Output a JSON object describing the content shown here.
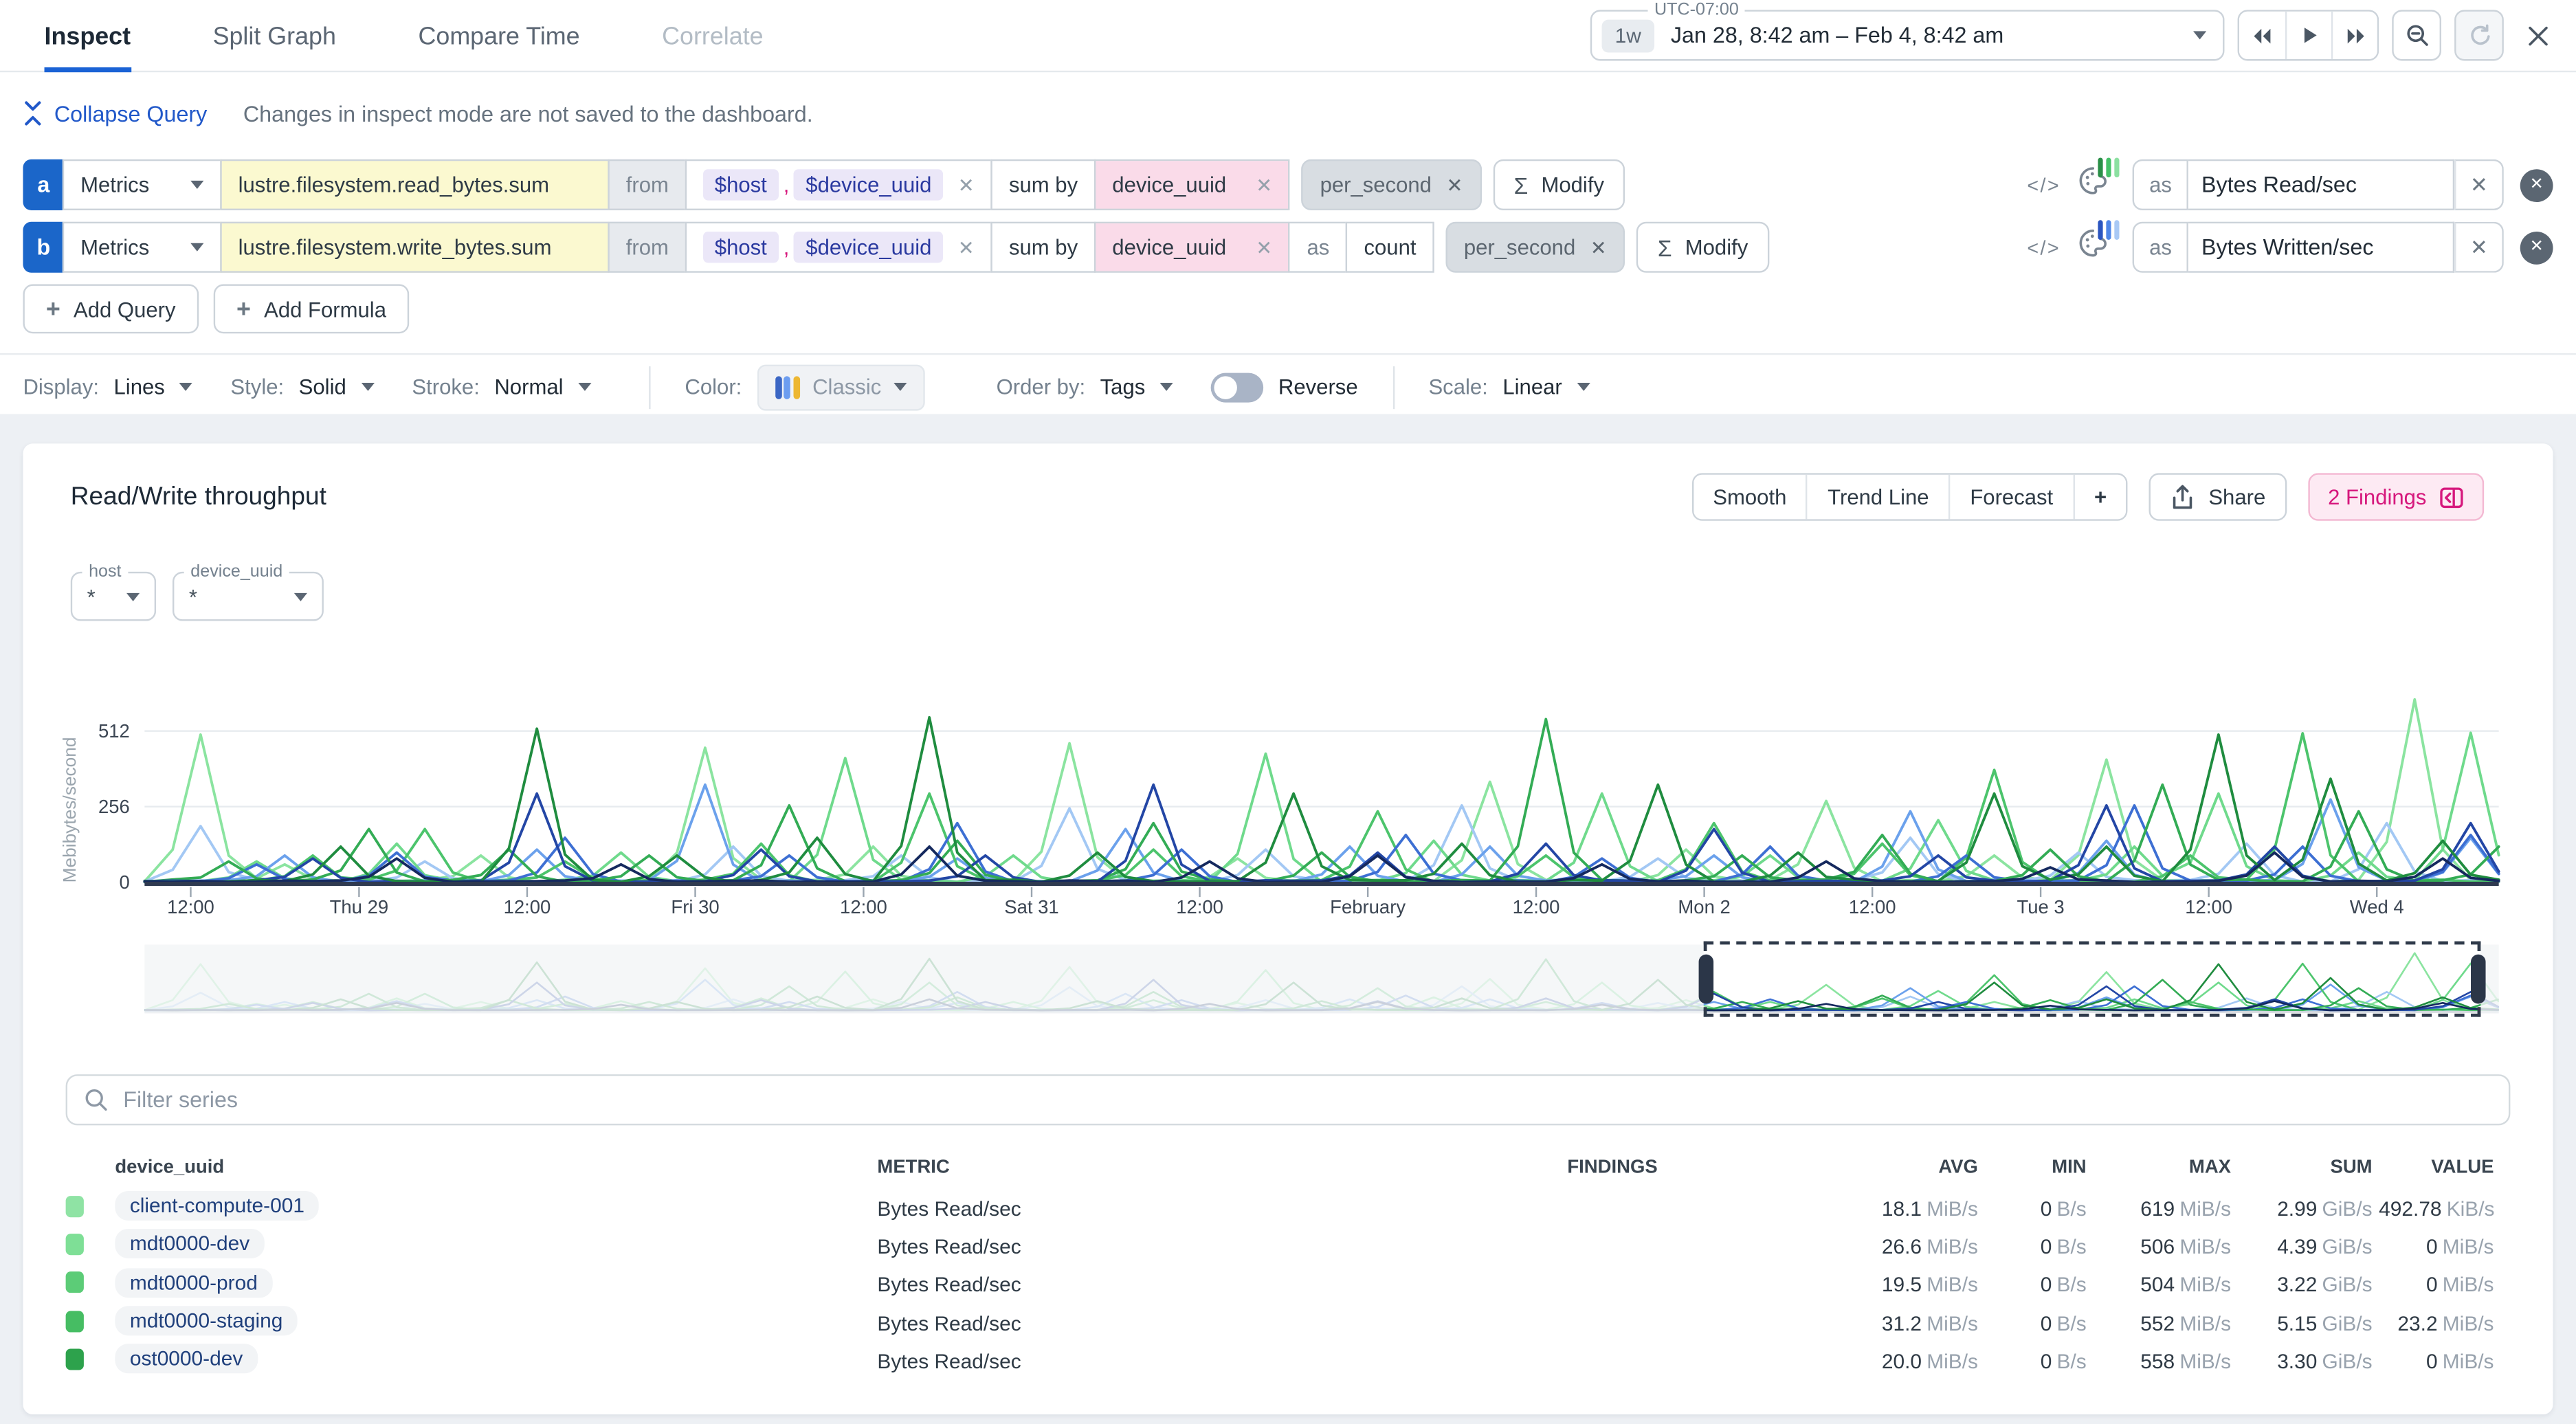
{
  "tabs": [
    {
      "label": "Inspect",
      "active": true
    },
    {
      "label": "Split Graph",
      "active": false
    },
    {
      "label": "Compare Time",
      "active": false
    },
    {
      "label": "Correlate",
      "active": false,
      "disabled": true
    }
  ],
  "time": {
    "timezone": "UTC-07:00",
    "preset": "1w",
    "range": "Jan 28, 8:42 am – Feb 4, 8:42 am"
  },
  "collapse_label": "Collapse Query",
  "notice": "Changes in inspect mode are not saved to the dashboard.",
  "icons": {
    "sigma": "Σ",
    "code": "</>",
    "plus": "+",
    "x": "✕",
    "star": "*",
    "search": "🔍"
  },
  "queries": [
    {
      "id": "a",
      "source": "Metrics",
      "metric": "lustre.filesystem.read_bytes.sum",
      "from_label": "from",
      "filter1": "$host",
      "comma": ",",
      "filter2": "$device_uuid",
      "sum_by_label": "sum by",
      "group_by": "device_uuid",
      "rollup": "per_second",
      "modify_label": "Modify",
      "as_label": "as",
      "alias": "Bytes Read/sec",
      "palette_colors": [
        "#2a8f47",
        "#45c168",
        "#8ce0a1"
      ]
    },
    {
      "id": "b",
      "source": "Metrics",
      "metric": "lustre.filesystem.write_bytes.sum",
      "from_label": "from",
      "filter1": "$host",
      "comma": ",",
      "filter2": "$device_uuid",
      "sum_by_label": "sum by",
      "group_by": "device_uuid",
      "as2_label": "as",
      "count_label": "count",
      "rollup": "per_second",
      "modify_label": "Modify",
      "as_label": "as",
      "alias": "Bytes Written/sec",
      "palette_colors": [
        "#2b55c0",
        "#4f86e8",
        "#a9c9f5"
      ]
    }
  ],
  "add_query_label": "Add Query",
  "add_formula_label": "Add Formula",
  "display": {
    "display_label": "Display:",
    "display_value": "Lines",
    "style_label": "Style:",
    "style_value": "Solid",
    "stroke_label": "Stroke:",
    "stroke_value": "Normal",
    "color_label": "Color:",
    "color_value": "Classic",
    "color_swatch": [
      "#3b66c4",
      "#6c9df0",
      "#edb732"
    ],
    "order_label": "Order by:",
    "order_value": "Tags",
    "reverse_label": "Reverse",
    "reverse_on": false,
    "scale_label": "Scale:",
    "scale_value": "Linear"
  },
  "graph": {
    "title": "Read/Write throughput",
    "template_vars": [
      {
        "name": "host",
        "value": "*"
      },
      {
        "name": "device_uuid",
        "value": "*"
      }
    ],
    "toolbar": [
      "Smooth",
      "Trend Line",
      "Forecast",
      "+"
    ],
    "share_label": "Share",
    "findings_label": "2 Findings"
  },
  "filter_placeholder": "Filter series",
  "table": {
    "columns": [
      {
        "label": "device_uuid"
      },
      {
        "label": "METRIC"
      },
      {
        "label": "FINDINGS"
      },
      {
        "label": "AVG"
      },
      {
        "label": "MIN"
      },
      {
        "label": "MAX"
      },
      {
        "label": "SUM"
      },
      {
        "label": "VALUE"
      }
    ],
    "rows": [
      {
        "color": "#8fe3a4",
        "name": "client-compute-001",
        "metric": "Bytes Read/sec",
        "findings": "",
        "avg": {
          "v": "18.1",
          "u": "MiB/s"
        },
        "min": {
          "v": "0",
          "u": "B/s"
        },
        "max": {
          "v": "619",
          "u": "MiB/s"
        },
        "sum": {
          "v": "2.99",
          "u": "GiB/s"
        },
        "value": {
          "v": "492.78",
          "u": "KiB/s"
        }
      },
      {
        "color": "#7edf96",
        "name": "mdt0000-dev",
        "metric": "Bytes Read/sec",
        "findings": "",
        "avg": {
          "v": "26.6",
          "u": "MiB/s"
        },
        "min": {
          "v": "0",
          "u": "B/s"
        },
        "max": {
          "v": "506",
          "u": "MiB/s"
        },
        "sum": {
          "v": "4.39",
          "u": "GiB/s"
        },
        "value": {
          "v": "0",
          "u": "MiB/s"
        }
      },
      {
        "color": "#5ccc77",
        "name": "mdt0000-prod",
        "metric": "Bytes Read/sec",
        "findings": "",
        "avg": {
          "v": "19.5",
          "u": "MiB/s"
        },
        "min": {
          "v": "0",
          "u": "B/s"
        },
        "max": {
          "v": "504",
          "u": "MiB/s"
        },
        "sum": {
          "v": "3.22",
          "u": "GiB/s"
        },
        "value": {
          "v": "0",
          "u": "MiB/s"
        }
      },
      {
        "color": "#46bd63",
        "name": "mdt0000-staging",
        "metric": "Bytes Read/sec",
        "findings": "",
        "avg": {
          "v": "31.2",
          "u": "MiB/s"
        },
        "min": {
          "v": "0",
          "u": "B/s"
        },
        "max": {
          "v": "552",
          "u": "MiB/s"
        },
        "sum": {
          "v": "5.15",
          "u": "GiB/s"
        },
        "value": {
          "v": "23.2",
          "u": "MiB/s"
        }
      },
      {
        "color": "#2da24c",
        "name": "ost0000-dev",
        "metric": "Bytes Read/sec",
        "findings": "",
        "avg": {
          "v": "20.0",
          "u": "MiB/s"
        },
        "min": {
          "v": "0",
          "u": "B/s"
        },
        "max": {
          "v": "558",
          "u": "MiB/s"
        },
        "sum": {
          "v": "3.30",
          "u": "GiB/s"
        },
        "value": {
          "v": "0",
          "u": "MiB/s"
        }
      }
    ]
  },
  "chart_data": {
    "type": "line",
    "title": "Read/Write throughput",
    "ylabel": "Mebibytes/second",
    "yticks": [
      0,
      256,
      512
    ],
    "ylim": [
      0,
      640
    ],
    "grid": true,
    "legend_position": "none",
    "n_points": 85,
    "x_ticks": [
      {
        "label": "12:00",
        "pos": 0.0196
      },
      {
        "label": "Thu 29",
        "pos": 0.0911
      },
      {
        "label": "12:00",
        "pos": 0.1625
      },
      {
        "label": "Fri 30",
        "pos": 0.2339
      },
      {
        "label": "12:00",
        "pos": 0.3054
      },
      {
        "label": "Sat 31",
        "pos": 0.3768
      },
      {
        "label": "12:00",
        "pos": 0.4482
      },
      {
        "label": "February",
        "pos": 0.5196
      },
      {
        "label": "12:00",
        "pos": 0.5911
      },
      {
        "label": "Mon 2",
        "pos": 0.6625
      },
      {
        "label": "12:00",
        "pos": 0.7339
      },
      {
        "label": "Tue 3",
        "pos": 0.8054
      },
      {
        "label": "12:00",
        "pos": 0.8768
      },
      {
        "label": "Wed 4",
        "pos": 0.9482
      }
    ],
    "brush_selection": {
      "start_frac": 0.662,
      "end_frac": 0.992
    },
    "unit": "MiB/s",
    "noise": [
      2,
      5,
      3,
      8,
      4,
      1,
      6,
      3,
      9,
      2,
      4,
      7,
      3,
      1,
      5,
      8,
      2,
      6,
      4,
      3,
      7,
      1,
      9,
      4,
      2,
      6,
      3,
      8,
      1,
      5,
      3,
      7,
      2,
      9,
      4,
      1,
      6,
      3,
      8,
      2,
      5,
      7,
      1,
      4,
      9,
      3,
      6,
      2,
      8,
      4,
      1,
      7,
      3,
      5,
      9,
      2,
      4,
      8,
      1,
      6,
      3,
      7,
      2,
      5,
      8,
      1,
      4,
      6,
      9,
      2,
      7,
      3,
      1,
      8,
      4,
      6,
      2,
      9,
      3,
      5,
      1,
      7,
      4,
      2,
      6
    ],
    "series": [
      {
        "name": "client-compute-001",
        "metric": "Bytes Read/sec",
        "color": "#8be4a0",
        "base": 10,
        "spikes": [
          [
            2,
            500
          ],
          [
            5,
            60
          ],
          [
            12,
            90
          ],
          [
            20,
            455
          ],
          [
            26,
            120
          ],
          [
            33,
            470
          ],
          [
            39,
            80
          ],
          [
            48,
            340
          ],
          [
            55,
            110
          ],
          [
            60,
            275
          ],
          [
            66,
            90
          ],
          [
            70,
            415
          ],
          [
            76,
            120
          ],
          [
            81,
            619
          ]
        ]
      },
      {
        "name": "client-compute-001",
        "metric": "Bytes Written/sec",
        "color": "#a3c8f4",
        "base": 8,
        "spikes": [
          [
            2,
            190
          ],
          [
            10,
            70
          ],
          [
            21,
            120
          ],
          [
            27,
            90
          ],
          [
            33,
            250
          ],
          [
            40,
            110
          ],
          [
            47,
            260
          ],
          [
            54,
            80
          ],
          [
            63,
            150
          ],
          [
            69,
            100
          ],
          [
            75,
            130
          ],
          [
            80,
            200
          ]
        ]
      },
      {
        "name": "mdt0000-dev",
        "metric": "Bytes Read/sec",
        "color": "#6fda8c",
        "base": 9,
        "spikes": [
          [
            4,
            70
          ],
          [
            9,
            130
          ],
          [
            17,
            100
          ],
          [
            25,
            420
          ],
          [
            31,
            90
          ],
          [
            40,
            435
          ],
          [
            46,
            140
          ],
          [
            52,
            300
          ],
          [
            58,
            90
          ],
          [
            64,
            210
          ],
          [
            71,
            120
          ],
          [
            74,
            300
          ],
          [
            79,
            100
          ],
          [
            83,
            506
          ]
        ]
      },
      {
        "name": "mdt0000-dev",
        "metric": "Bytes Written/sec",
        "color": "#6ba1ec",
        "base": 8,
        "spikes": [
          [
            5,
            90
          ],
          [
            14,
            110
          ],
          [
            20,
            330
          ],
          [
            29,
            80
          ],
          [
            35,
            180
          ],
          [
            43,
            120
          ],
          [
            48,
            120
          ],
          [
            56,
            90
          ],
          [
            63,
            240
          ],
          [
            70,
            140
          ],
          [
            78,
            280
          ],
          [
            83,
            150
          ]
        ]
      },
      {
        "name": "mdt0000-prod",
        "metric": "Bytes Read/sec",
        "color": "#4cc46c",
        "base": 9,
        "spikes": [
          [
            6,
            90
          ],
          [
            10,
            180
          ],
          [
            15,
            70
          ],
          [
            22,
            130
          ],
          [
            28,
            300
          ],
          [
            36,
            110
          ],
          [
            44,
            240
          ],
          [
            50,
            90
          ],
          [
            56,
            200
          ],
          [
            62,
            130
          ],
          [
            66,
            380
          ],
          [
            73,
            90
          ],
          [
            77,
            504
          ]
        ]
      },
      {
        "name": "mdt0000-prod",
        "metric": "Bytes Written/sec",
        "color": "#3d6fd3",
        "base": 7,
        "spikes": [
          [
            4,
            60
          ],
          [
            9,
            100
          ],
          [
            15,
            150
          ],
          [
            23,
            90
          ],
          [
            29,
            200
          ],
          [
            37,
            110
          ],
          [
            45,
            160
          ],
          [
            52,
            80
          ],
          [
            58,
            120
          ],
          [
            65,
            90
          ],
          [
            71,
            260
          ],
          [
            77,
            120
          ],
          [
            83,
            160
          ]
        ]
      },
      {
        "name": "mdt0000-staging",
        "metric": "Bytes Read/sec",
        "color": "#33ac55",
        "base": 10,
        "spikes": [
          [
            3,
            70
          ],
          [
            8,
            180
          ],
          [
            13,
            110
          ],
          [
            18,
            90
          ],
          [
            23,
            260
          ],
          [
            29,
            140
          ],
          [
            36,
            200
          ],
          [
            42,
            100
          ],
          [
            50,
            552
          ],
          [
            57,
            90
          ],
          [
            62,
            160
          ],
          [
            68,
            110
          ],
          [
            72,
            330
          ],
          [
            79,
            240
          ],
          [
            84,
            120
          ]
        ]
      },
      {
        "name": "mdt0000-staging",
        "metric": "Bytes Written/sec",
        "color": "#2346a5",
        "base": 7,
        "spikes": [
          [
            6,
            80
          ],
          [
            14,
            300
          ],
          [
            22,
            110
          ],
          [
            30,
            90
          ],
          [
            36,
            330
          ],
          [
            44,
            100
          ],
          [
            50,
            130
          ],
          [
            56,
            180
          ],
          [
            64,
            90
          ],
          [
            70,
            260
          ],
          [
            76,
            120
          ],
          [
            83,
            200
          ]
        ]
      },
      {
        "name": "ost0000-dev",
        "metric": "Bytes Read/sec",
        "color": "#1f8c3f",
        "base": 9,
        "spikes": [
          [
            7,
            120
          ],
          [
            14,
            520
          ],
          [
            19,
            90
          ],
          [
            24,
            150
          ],
          [
            28,
            558
          ],
          [
            34,
            100
          ],
          [
            41,
            300
          ],
          [
            47,
            130
          ],
          [
            54,
            330
          ],
          [
            59,
            100
          ],
          [
            66,
            300
          ],
          [
            70,
            120
          ],
          [
            74,
            500
          ],
          [
            78,
            350
          ],
          [
            82,
            140
          ]
        ]
      },
      {
        "name": "ost0000-dev",
        "metric": "Bytes Written/sec",
        "color": "#15295e",
        "base": 6,
        "spikes": [
          [
            9,
            80
          ],
          [
            17,
            60
          ],
          [
            28,
            120
          ],
          [
            38,
            70
          ],
          [
            44,
            90
          ],
          [
            52,
            60
          ],
          [
            60,
            70
          ],
          [
            68,
            50
          ],
          [
            76,
            100
          ],
          [
            82,
            80
          ]
        ]
      }
    ]
  }
}
